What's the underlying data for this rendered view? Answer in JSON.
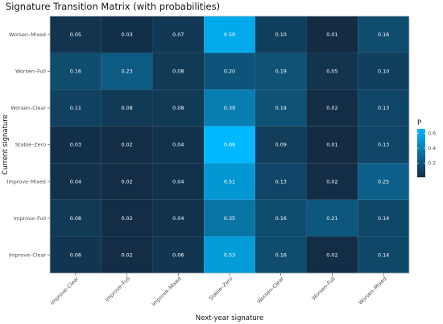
{
  "chart_data": {
    "type": "heatmap",
    "title": "Signature Transition Matrix (with probabilities)",
    "xlabel": "Next-year signature",
    "ylabel": "Current signature",
    "x_categories": [
      "Improve–Clear",
      "Improve–Full",
      "Improve–Mixed",
      "Stable–Zero",
      "Worsen–Clear",
      "Worsen–Full",
      "Worsen–Mixed"
    ],
    "y_categories": [
      "Worsen–Mixed",
      "Worsen–Full",
      "Worsen–Clear",
      "Stable–Zero",
      "Improve–Mixed",
      "Improve–Full",
      "Improve–Clear"
    ],
    "values": [
      [
        0.05,
        0.03,
        0.07,
        0.59,
        0.1,
        0.01,
        0.16
      ],
      [
        0.16,
        0.23,
        0.08,
        0.2,
        0.19,
        0.05,
        0.1
      ],
      [
        0.11,
        0.08,
        0.08,
        0.39,
        0.19,
        0.02,
        0.13
      ],
      [
        0.03,
        0.02,
        0.04,
        0.66,
        0.09,
        0.01,
        0.13
      ],
      [
        0.04,
        0.02,
        0.04,
        0.51,
        0.13,
        0.02,
        0.25
      ],
      [
        0.08,
        0.02,
        0.04,
        0.35,
        0.16,
        0.21,
        0.14
      ],
      [
        0.06,
        0.02,
        0.06,
        0.53,
        0.16,
        0.02,
        0.14
      ]
    ],
    "value_range": [
      0.01,
      0.66
    ],
    "legend": {
      "title": "P",
      "ticks": [
        0.2,
        0.4,
        0.6
      ],
      "tick_labels": [
        "0.2",
        "0.4",
        "0.6"
      ],
      "placement": "right"
    },
    "colors": {
      "low": "#132b43",
      "high": "#00b8ff",
      "border": "#cccccc"
    },
    "grid": false
  }
}
